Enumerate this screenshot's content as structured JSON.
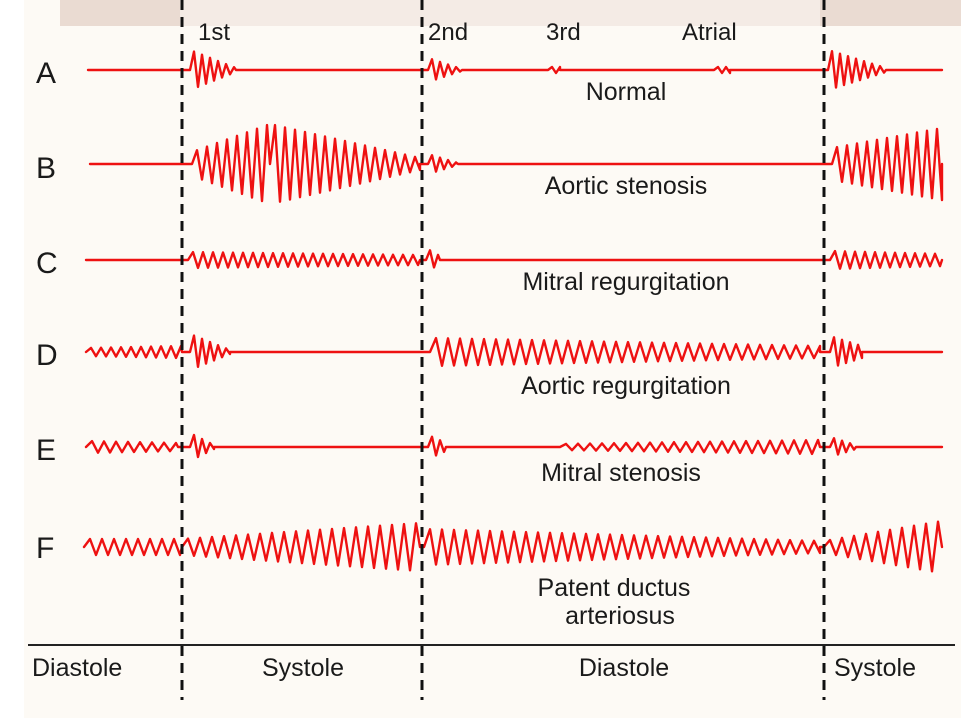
{
  "header_labels": {
    "first": "1st",
    "second": "2nd",
    "third": "3rd",
    "atrial": "Atrial"
  },
  "colors": {
    "trace": "#ee1111",
    "background": "#fdfaf5",
    "top_strip": "#e6d0c4"
  },
  "rows": [
    {
      "letter": "A",
      "caption": [
        "Normal"
      ]
    },
    {
      "letter": "B",
      "caption": [
        "Aortic stenosis"
      ]
    },
    {
      "letter": "C",
      "caption": [
        "Mitral regurgitation"
      ]
    },
    {
      "letter": "D",
      "caption": [
        "Aortic regurgitation"
      ]
    },
    {
      "letter": "E",
      "caption": [
        "Mitral stenosis"
      ]
    },
    {
      "letter": "F",
      "caption": [
        "Patent ductus",
        "arteriosus"
      ]
    }
  ],
  "phases": [
    "Diastole",
    "Systole",
    "Diastole",
    "Systole"
  ]
}
